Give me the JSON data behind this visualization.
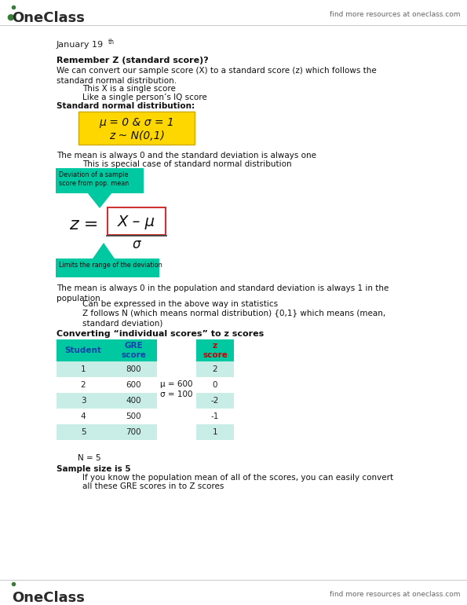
{
  "bg_color": "#ffffff",
  "top_right_text": "find more resources at oneclass.com",
  "bottom_right_text": "find more resources at oneclass.com",
  "yellow_box_color": "#FFD700",
  "callout_color": "#00C8A0",
  "arrow_color": "#9933CC",
  "table_header_bg": "#00C8A0",
  "table_row_bg_even": "#C8EDE6",
  "table_row_bg_odd": "#ffffff",
  "table_students": [
    1,
    2,
    3,
    4,
    5
  ],
  "table_gre": [
    800,
    600,
    400,
    500,
    700
  ],
  "table_z": [
    2,
    0,
    -2,
    -1,
    1
  ]
}
